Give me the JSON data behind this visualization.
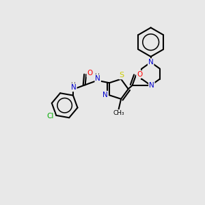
{
  "background_color": "#e8e8e8",
  "bond_color": "#000000",
  "bond_width": 1.5,
  "figsize": [
    3.0,
    3.0
  ],
  "dpi": 100,
  "colors": {
    "C": "#000000",
    "N": "#0000cc",
    "O": "#ff0000",
    "S": "#cccc00",
    "Cl": "#00aa00",
    "H": "#555555"
  }
}
